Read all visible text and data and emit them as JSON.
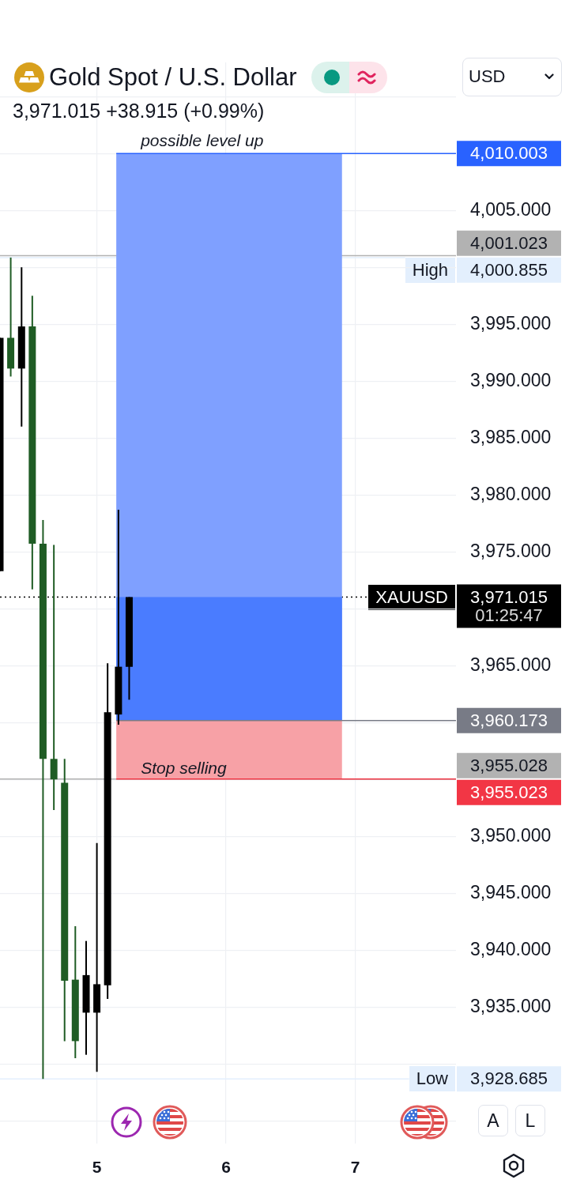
{
  "chart_data": {
    "type": "candlestick",
    "title": "Gold Spot / U.S. Dollar",
    "subtitle": "3,971.015 +38.915 (+0.99%)",
    "ylabel": "USD",
    "x": [
      4.25,
      4.333,
      4.417,
      4.5,
      4.583,
      4.667,
      4.75,
      4.833,
      4.917,
      5,
      5.083,
      5.167,
      5.25
    ],
    "ohlc": [
      [
        3973.3,
        3993.8,
        3973.3,
        3993.8
      ],
      [
        3993.8,
        4000.855,
        3990.4,
        3991.1
      ],
      [
        3991.1,
        4000.0,
        3986.0,
        3994.8
      ],
      [
        3994.8,
        3997.5,
        3971.7,
        3975.7
      ],
      [
        3975.7,
        3977.8,
        3928.685,
        3956.8
      ],
      [
        3956.8,
        3975.6,
        3952.3,
        3955.0
      ],
      [
        3954.7,
        3956.8,
        3932.0,
        3937.3
      ],
      [
        3937.4,
        3942.1,
        3930.5,
        3932.0
      ],
      [
        3934.5,
        3940.8,
        3930.8,
        3937.8
      ],
      [
        3934.5,
        3949.4,
        3929.3,
        3937.0
      ],
      [
        3936.9,
        3965.2,
        3935.7,
        3960.9
      ],
      [
        3960.7,
        3978.7,
        3959.8,
        3964.9
      ],
      [
        3964.9,
        3971.015,
        3962.0,
        3971.015
      ]
    ],
    "colors": [
      "#000000",
      "#1f5c24",
      "#000000",
      "#1f5c24",
      "#1f5c24",
      "#1f5c24",
      "#1f5c24",
      "#1f5c24",
      "#000000",
      "#000000",
      "#000000",
      "#000000",
      "#000000"
    ],
    "xlim": [
      4.25,
      7.78
    ],
    "xticks": [
      5,
      6,
      7
    ],
    "ylim": [
      3923,
      4018
    ],
    "yticks": [
      {
        "value": 3925,
        "label": null
      },
      {
        "value": 3930,
        "label": null
      },
      {
        "value": 3935,
        "label": "3,935.000"
      },
      {
        "value": 3940,
        "label": "3,940.000"
      },
      {
        "value": 3945,
        "label": "3,945.000"
      },
      {
        "value": 3950,
        "label": "3,950.000"
      },
      {
        "value": 3955,
        "label": null
      },
      {
        "value": 3960,
        "label": null
      },
      {
        "value": 3965,
        "label": "3,965.000"
      },
      {
        "value": 3970,
        "label": null
      },
      {
        "value": 3975,
        "label": "3,975.000"
      },
      {
        "value": 3980,
        "label": "3,980.000"
      },
      {
        "value": 3985,
        "label": "3,985.000"
      },
      {
        "value": 3990,
        "label": "3,990.000"
      },
      {
        "value": 3995,
        "label": "3,995.000"
      },
      {
        "value": 4000,
        "label": null
      },
      {
        "value": 4005,
        "label": "4,005.000"
      },
      {
        "value": 4010,
        "label": null
      },
      {
        "value": 4015,
        "label": null
      }
    ],
    "grid": true,
    "bands": [
      {
        "axis": "y",
        "from": 3960.173,
        "to": 4010.003,
        "label": "possible level up",
        "color": "#7fa0ff"
      },
      {
        "axis": "y",
        "from": 3960.173,
        "to": 3971.015,
        "color": "#4a7cff"
      },
      {
        "axis": "y",
        "from": 3955.023,
        "to": 3960.173,
        "label": "Stop selling",
        "color": "#f7a1a6"
      }
    ],
    "ref_lines": [
      {
        "axis": "y",
        "value": 4010.003,
        "label": "4,010.003",
        "color": "#2962ff"
      },
      {
        "axis": "y",
        "value": 4001.023,
        "label": "4,001.023",
        "color": "#b2b2b2",
        "line_style": "solid"
      },
      {
        "axis": "y",
        "value": 4000.855,
        "label": "High 4,000.855",
        "color": "#e3effd"
      },
      {
        "axis": "y",
        "value": 3971.015,
        "label": "XAUUSD 3,971.015",
        "color": "#000000",
        "line_style": "dotted"
      },
      {
        "axis": "y",
        "value": 3960.173,
        "label": "3,960.173",
        "color": "#787b86"
      },
      {
        "axis": "y",
        "value": 3955.028,
        "label": "3,955.028",
        "color": "#b2b2b2",
        "line_style": "solid"
      },
      {
        "axis": "y",
        "value": 3955.023,
        "label": "3,955.023",
        "color": "#f23645"
      },
      {
        "axis": "y",
        "value": 3928.685,
        "label": "Low 3,928.685",
        "color": "#e3effd"
      }
    ],
    "annotations": [
      "01:25:47",
      "A",
      "L"
    ]
  }
}
